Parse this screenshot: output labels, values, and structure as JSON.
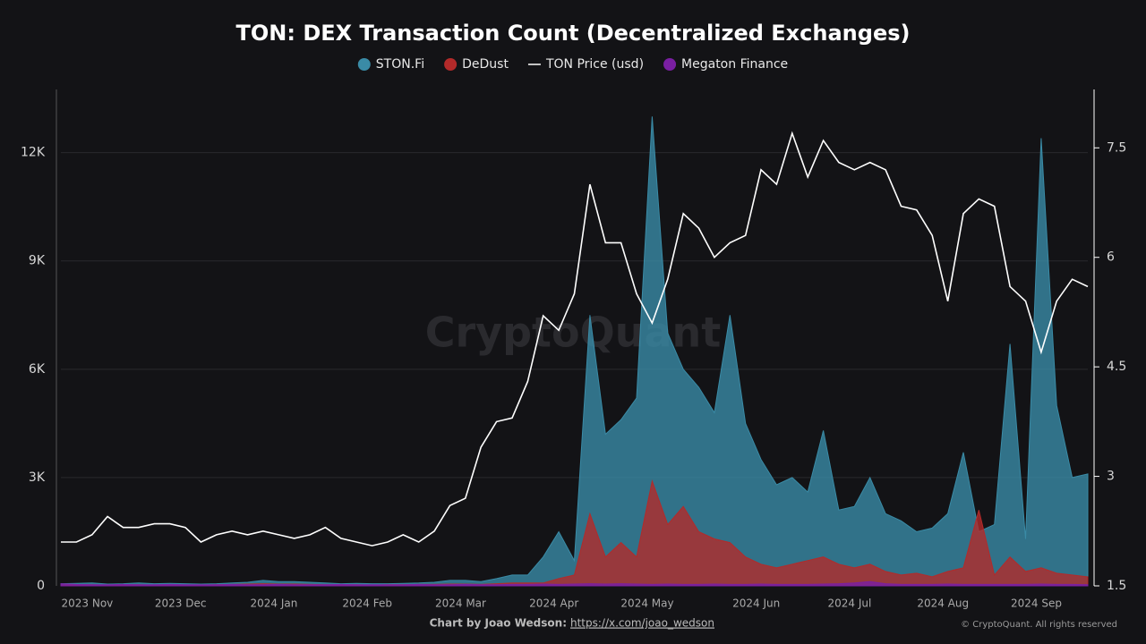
{
  "chart_data": {
    "type": "area",
    "title": "TON: DEX Transaction Count (Decentralized Exchanges)",
    "watermark": "CryptoQuant",
    "credit": "Chart by Joao Wedson:",
    "credit_link": "https://x.com/joao_wedson",
    "copyright": "© CryptoQuant. All rights reserved",
    "legend": "top",
    "grid": true,
    "categories": [
      null,
      "2023 Nov",
      null,
      null,
      null,
      null,
      null,
      "2023 Dec",
      null,
      null,
      null,
      null,
      null,
      "2024 Jan",
      null,
      null,
      null,
      null,
      null,
      "2024 Feb",
      null,
      null,
      null,
      null,
      null,
      "2024 Mar",
      null,
      null,
      null,
      null,
      null,
      "2024 Apr",
      null,
      null,
      null,
      null,
      null,
      "2024 May",
      null,
      null,
      null,
      null,
      null,
      null,
      "2024 Jun",
      null,
      null,
      null,
      null,
      null,
      "2024 Jul",
      null,
      null,
      null,
      null,
      null,
      "2024 Aug",
      null,
      null,
      null,
      null,
      null,
      "2024 Sep",
      null,
      null,
      null,
      null
    ],
    "ylim": [
      0,
      13750
    ],
    "yticks": [
      0,
      {
        "value": 3000,
        "label": "3K"
      },
      {
        "value": 6000,
        "label": "6K"
      },
      {
        "value": 9000,
        "label": "9K"
      },
      {
        "value": 12000,
        "label": "12K"
      }
    ],
    "y2lim": [
      1.5,
      8.3
    ],
    "y2ticks": [
      1.5,
      3,
      4.5,
      6,
      7.5
    ],
    "series": [
      {
        "name": "STON.Fi",
        "type": "area",
        "color": "#3a8ba6",
        "values": [
          60,
          70,
          80,
          50,
          60,
          80,
          60,
          70,
          60,
          50,
          60,
          80,
          100,
          150,
          120,
          120,
          100,
          80,
          60,
          70,
          60,
          60,
          70,
          80,
          100,
          150,
          150,
          120,
          200,
          300,
          300,
          800,
          1500,
          700,
          7500,
          4200,
          4600,
          5200,
          13000,
          7000,
          6000,
          5500,
          4800,
          7500,
          4500,
          3500,
          2800,
          3000,
          2600,
          4300,
          2100,
          2200,
          3000,
          2000,
          1800,
          1500,
          1600,
          2000,
          3700,
          1500,
          1700,
          6700,
          1300,
          12400,
          5000,
          3000,
          3100
        ]
      },
      {
        "name": "DeDust",
        "type": "area",
        "color": "#b32a2a",
        "values": [
          20,
          30,
          30,
          20,
          30,
          30,
          20,
          30,
          20,
          20,
          30,
          40,
          50,
          60,
          50,
          50,
          40,
          30,
          30,
          30,
          20,
          30,
          30,
          40,
          40,
          50,
          50,
          40,
          60,
          80,
          80,
          80,
          200,
          300,
          2000,
          800,
          1200,
          800,
          2900,
          1700,
          2200,
          1500,
          1300,
          1200,
          800,
          600,
          500,
          600,
          700,
          800,
          600,
          500,
          600,
          400,
          300,
          350,
          250,
          400,
          500,
          2100,
          300,
          800,
          400,
          500,
          350,
          300,
          250
        ]
      },
      {
        "name": "TON Price (usd)",
        "type": "line",
        "axis": "y2",
        "color": "#ffffff",
        "values": [
          2.1,
          2.1,
          2.2,
          2.45,
          2.3,
          2.3,
          2.35,
          2.35,
          2.3,
          2.1,
          2.2,
          2.25,
          2.2,
          2.25,
          2.2,
          2.15,
          2.2,
          2.3,
          2.15,
          2.1,
          2.05,
          2.1,
          2.2,
          2.1,
          2.25,
          2.6,
          2.7,
          3.4,
          3.75,
          3.8,
          4.3,
          5.2,
          5.0,
          5.5,
          7.0,
          6.2,
          6.2,
          5.5,
          5.1,
          5.7,
          6.6,
          6.4,
          6.0,
          6.2,
          6.3,
          7.2,
          7.0,
          7.7,
          7.1,
          7.6,
          7.3,
          7.2,
          7.3,
          7.2,
          6.7,
          6.65,
          6.3,
          5.4,
          6.6,
          6.8,
          6.7,
          5.6,
          5.4,
          4.7,
          5.4,
          5.7,
          5.6
        ]
      },
      {
        "name": "Megaton Finance",
        "type": "area",
        "color": "#7a1fa2",
        "values": [
          60,
          40,
          30,
          30,
          40,
          30,
          30,
          40,
          30,
          30,
          30,
          40,
          30,
          30,
          40,
          30,
          30,
          30,
          40,
          30,
          30,
          30,
          30,
          40,
          30,
          30,
          40,
          30,
          30,
          40,
          40,
          50,
          40,
          50,
          60,
          50,
          60,
          50,
          40,
          50,
          40,
          40,
          50,
          40,
          40,
          50,
          40,
          40,
          40,
          50,
          60,
          80,
          120,
          60,
          40,
          40,
          40,
          50,
          40,
          40,
          40,
          40,
          40,
          50,
          40,
          40,
          30
        ]
      }
    ]
  }
}
